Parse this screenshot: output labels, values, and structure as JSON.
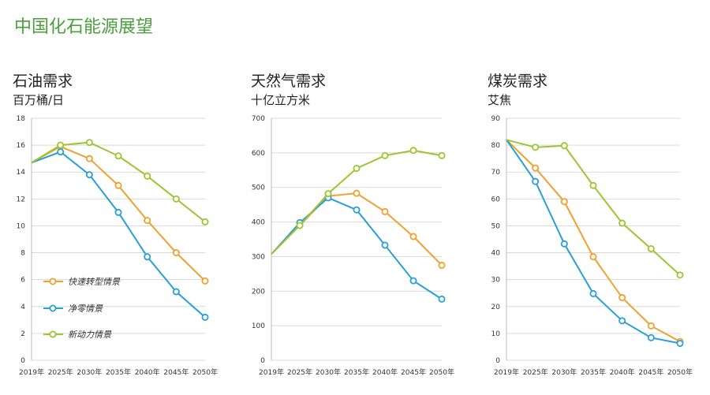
{
  "page_title": "中国化石能源展望",
  "colors": {
    "fast": "#f0a030",
    "zero": "#2a9fd6",
    "new": "#9cc531",
    "grid": "#d9d9d9",
    "title": "#4a9e3b"
  },
  "chart_data": [
    {
      "type": "line",
      "title": "石油需求",
      "unit": "百万桶/日",
      "x": [
        "2019年",
        "2025年",
        "2030年",
        "2035年",
        "2040年",
        "2045年",
        "2050年"
      ],
      "y_ticks": [
        "0",
        "2",
        "4",
        "6",
        "8",
        "10",
        "12",
        "14",
        "16",
        "18"
      ],
      "ylim": [
        0,
        18
      ],
      "series": [
        {
          "name": "快速转型情景",
          "color": "fast",
          "values": [
            14.7,
            15.9,
            15.0,
            13.0,
            10.4,
            8.0,
            5.9
          ]
        },
        {
          "name": "净零情景",
          "color": "zero",
          "values": [
            14.7,
            15.5,
            13.8,
            11.0,
            7.7,
            5.1,
            3.2
          ]
        },
        {
          "name": "新动力情景",
          "color": "new",
          "values": [
            14.7,
            16.0,
            16.2,
            15.2,
            13.7,
            12.0,
            10.3
          ]
        }
      ],
      "legend": "lower-left"
    },
    {
      "type": "line",
      "title": "天然气需求",
      "unit": "十亿立方米",
      "x": [
        "2019年",
        "2025年",
        "2030年",
        "2035年",
        "2040年",
        "2045年",
        "2050年"
      ],
      "y_ticks": [
        "0",
        "100",
        "200",
        "300",
        "400",
        "500",
        "600",
        "700"
      ],
      "ylim": [
        0,
        700
      ],
      "series": [
        {
          "name": "快速转型情景",
          "color": "fast",
          "values": [
            307,
            390,
            475,
            483,
            430,
            358,
            275
          ]
        },
        {
          "name": "净零情景",
          "color": "zero",
          "values": [
            307,
            398,
            470,
            435,
            333,
            230,
            177
          ]
        },
        {
          "name": "新动力情景",
          "color": "new",
          "values": [
            307,
            390,
            482,
            555,
            592,
            607,
            592
          ]
        }
      ]
    },
    {
      "type": "line",
      "title": "煤炭需求",
      "unit": "艾焦",
      "x": [
        "2019年",
        "2025年",
        "2030年",
        "2035年",
        "2040年",
        "2045年",
        "2050年"
      ],
      "y_ticks": [
        "0",
        "10",
        "20",
        "30",
        "40",
        "50",
        "60",
        "70",
        "80",
        "90"
      ],
      "ylim": [
        0,
        90
      ],
      "series": [
        {
          "name": "快速转型情景",
          "color": "fast",
          "values": [
            82,
            71.5,
            59,
            38.5,
            23.3,
            12.8,
            7.0
          ]
        },
        {
          "name": "净零情景",
          "color": "zero",
          "values": [
            82,
            66.5,
            43.3,
            24.8,
            14.7,
            8.4,
            6.3
          ]
        },
        {
          "name": "新动力情景",
          "color": "new",
          "values": [
            82,
            79.2,
            79.8,
            65.0,
            51.0,
            41.5,
            31.7
          ]
        }
      ]
    }
  ]
}
